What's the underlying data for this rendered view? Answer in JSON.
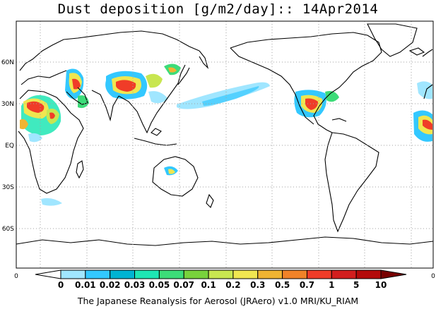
{
  "title": "Dust deposition [g/m2/day]:: 14Apr2014",
  "footer": "The Japanese Reanalysis for Aerosol (JRAero) v1.0 MRI/KU_RIAM",
  "lat_labels": [
    "60N",
    "30N",
    "EQ",
    "30S",
    "60S"
  ],
  "colorbar": {
    "labels": [
      "0",
      "0.01",
      "0.02",
      "0.03",
      "0.05",
      "0.07",
      "0.1",
      "0.2",
      "0.3",
      "0.5",
      "0.7",
      "1",
      "5",
      "10"
    ],
    "colors": [
      "#ffffff",
      "#a0e6ff",
      "#33c8ff",
      "#00b4d2",
      "#1ee6b4",
      "#3cdc78",
      "#78d23c",
      "#c8e650",
      "#f0e650",
      "#f0b432",
      "#f08228",
      "#f03c28",
      "#d21e1e",
      "#b40a0a",
      "#780000"
    ],
    "edge_left": "0",
    "edge_right": "0"
  }
}
